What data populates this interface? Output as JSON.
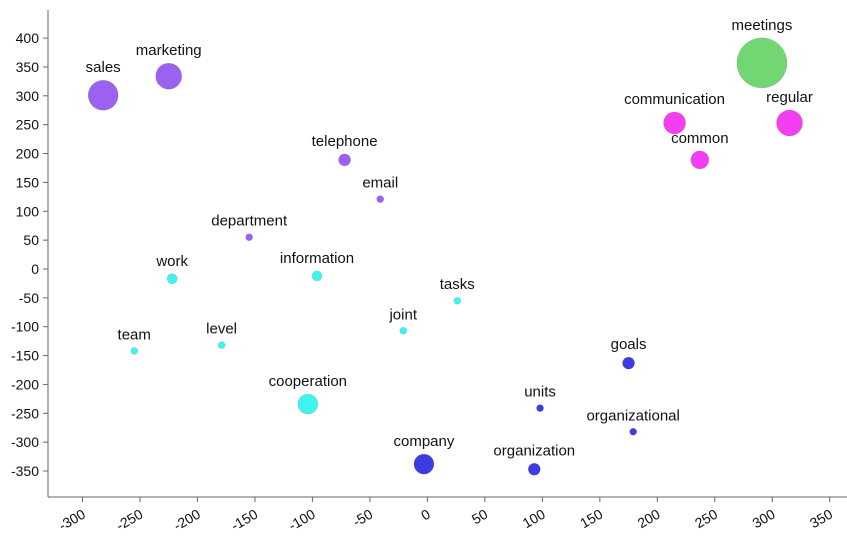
{
  "chart_data": {
    "type": "scatter",
    "points": [
      {
        "label": "sales",
        "x": -282,
        "y": 301,
        "size": 15,
        "color": "#9b62f0"
      },
      {
        "label": "marketing",
        "x": -225,
        "y": 334,
        "size": 13,
        "color": "#9b62f0"
      },
      {
        "label": "meetings",
        "x": 291,
        "y": 357,
        "size": 25,
        "color": "#72d672"
      },
      {
        "label": "communication",
        "x": 215,
        "y": 253,
        "size": 11,
        "color": "#f23ef0"
      },
      {
        "label": "regular",
        "x": 315,
        "y": 253,
        "size": 13,
        "color": "#f23ef0"
      },
      {
        "label": "common",
        "x": 237,
        "y": 189,
        "size": 9,
        "color": "#f23ef0"
      },
      {
        "label": "telephone",
        "x": -72,
        "y": 189,
        "size": 6,
        "color": "#9b62f0"
      },
      {
        "label": "email",
        "x": -41,
        "y": 121,
        "size": 3.5,
        "color": "#9b62f0"
      },
      {
        "label": "department",
        "x": -155,
        "y": 55,
        "size": 3.5,
        "color": "#9b62f0"
      },
      {
        "label": "work",
        "x": -222,
        "y": -17,
        "size": 5,
        "color": "#40f2f0"
      },
      {
        "label": "information",
        "x": -96,
        "y": -12,
        "size": 5,
        "color": "#40f2f0"
      },
      {
        "label": "tasks",
        "x": 26,
        "y": -55,
        "size": 3.5,
        "color": "#40f2f0"
      },
      {
        "label": "joint",
        "x": -21,
        "y": -107,
        "size": 3.5,
        "color": "#40f2f0"
      },
      {
        "label": "team",
        "x": -255,
        "y": -142,
        "size": 3.5,
        "color": "#40f2f0"
      },
      {
        "label": "level",
        "x": -179,
        "y": -132,
        "size": 3.5,
        "color": "#40f2f0"
      },
      {
        "label": "cooperation",
        "x": -104,
        "y": -234,
        "size": 10,
        "color": "#40f2f0"
      },
      {
        "label": "goals",
        "x": 175,
        "y": -163,
        "size": 6,
        "color": "#3c3ce2"
      },
      {
        "label": "units",
        "x": 98,
        "y": -241,
        "size": 3.5,
        "color": "#3c3ce2"
      },
      {
        "label": "organizational",
        "x": 179,
        "y": -282,
        "size": 3.5,
        "color": "#3c3ce2"
      },
      {
        "label": "company",
        "x": -3,
        "y": -338,
        "size": 10,
        "color": "#3c3ce2"
      },
      {
        "label": "organization",
        "x": 93,
        "y": -347,
        "size": 6,
        "color": "#3c3ce2"
      }
    ],
    "xlim": [
      -330,
      365
    ],
    "ylim": [
      -395,
      466
    ],
    "xticks": [
      -300,
      -250,
      -200,
      -150,
      -100,
      -50,
      0,
      50,
      100,
      150,
      200,
      250,
      300,
      350
    ],
    "yticks": [
      -350,
      -300,
      -250,
      -200,
      -150,
      -100,
      -50,
      0,
      50,
      100,
      150,
      200,
      250,
      300,
      350,
      400
    ]
  }
}
